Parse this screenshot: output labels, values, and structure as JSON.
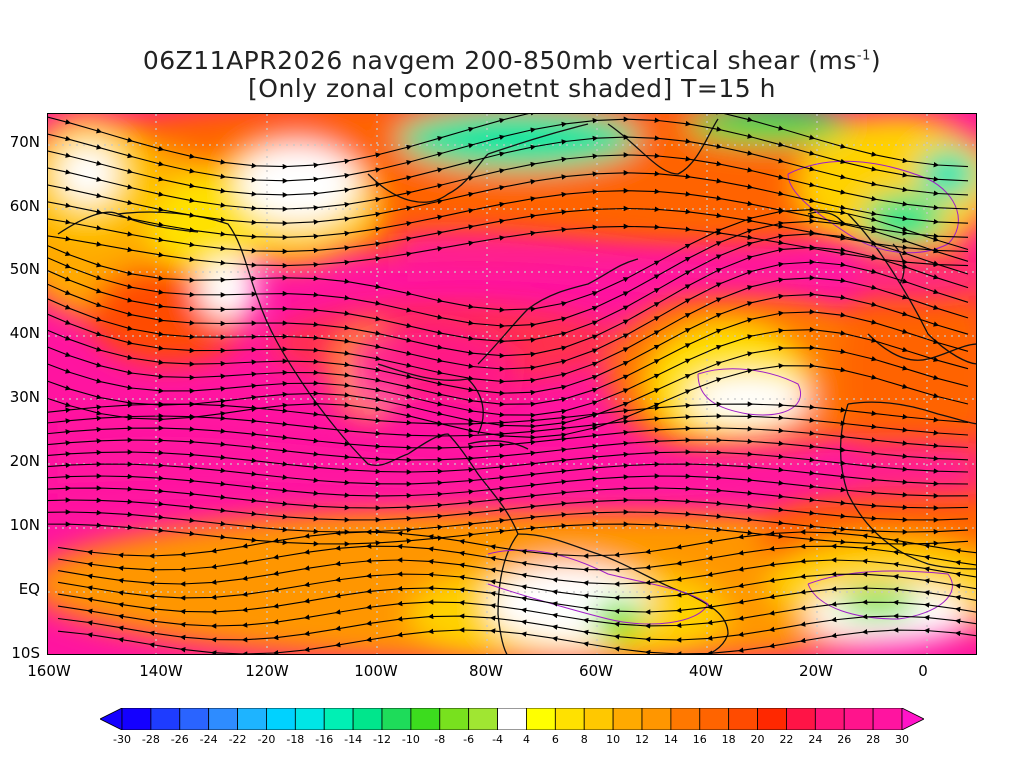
{
  "title": {
    "line1": "06Z11APR2026 navgem 200-850mb vertical shear (ms",
    "line1_sup": "-1",
    "line1_end": ")",
    "line2": "[Only zonal componetnt shaded] T=15 h"
  },
  "map": {
    "lat_labels": [
      "70N",
      "60N",
      "50N",
      "40N",
      "30N",
      "20N",
      "10N",
      "EQ",
      "10S"
    ],
    "lon_labels": [
      "160W",
      "140W",
      "120W",
      "100W",
      "80W",
      "60W",
      "40W",
      "20W",
      "0"
    ]
  },
  "colorbar": {
    "labels": [
      "-30",
      "-28",
      "-26",
      "-24",
      "-22",
      "-20",
      "-18",
      "-16",
      "-14",
      "-12",
      "-10",
      "-8",
      "-6",
      "-4",
      "4",
      "6",
      "8",
      "10",
      "12",
      "14",
      "16",
      "18",
      "20",
      "22",
      "24",
      "26",
      "28",
      "30"
    ],
    "colors": [
      "#1400ff",
      "#1e3cff",
      "#2a64ff",
      "#2e8cff",
      "#1eb4ff",
      "#00d2ff",
      "#00e6e6",
      "#00f0b4",
      "#00e68c",
      "#1edc5a",
      "#3cdc1e",
      "#78e11e",
      "#a0e632",
      "#ffffff",
      "#ffff00",
      "#ffe100",
      "#ffc800",
      "#ffaa00",
      "#ff9600",
      "#ff7800",
      "#ff6400",
      "#ff4b00",
      "#ff2800",
      "#ff1446",
      "#ff1478",
      "#ff148c",
      "#ff14a0"
    ],
    "left_arrow_color": "#1400ff",
    "right_arrow_color": "#ff14c8"
  }
}
